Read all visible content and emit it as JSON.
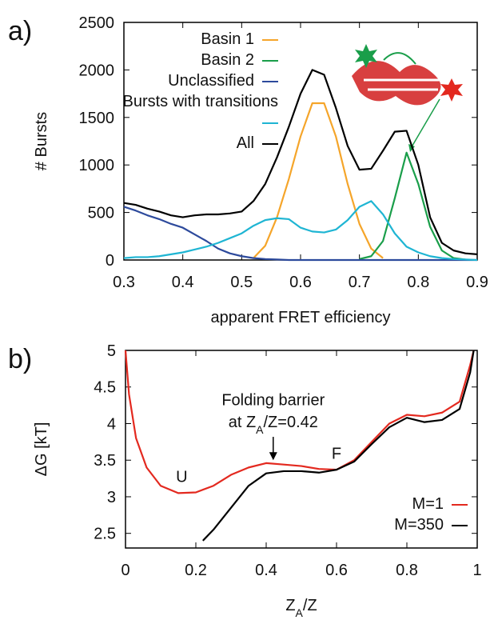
{
  "chart_data": [
    {
      "type": "line",
      "panel_label": "a)",
      "ylabel": "# Bursts",
      "xlabel": "apparent FRET efficiency",
      "xlim": [
        0.3,
        0.9
      ],
      "xticks": [
        0.3,
        0.4,
        0.5,
        0.6,
        0.7,
        0.8,
        0.9
      ],
      "ylim": [
        0,
        2500
      ],
      "yticks": [
        0,
        500,
        1000,
        1500,
        2000,
        2500
      ],
      "x": [
        0.3,
        0.32,
        0.34,
        0.36,
        0.38,
        0.4,
        0.42,
        0.44,
        0.46,
        0.48,
        0.5,
        0.52,
        0.54,
        0.56,
        0.58,
        0.6,
        0.62,
        0.64,
        0.66,
        0.68,
        0.7,
        0.72,
        0.74,
        0.76,
        0.78,
        0.8,
        0.82,
        0.84,
        0.86,
        0.88,
        0.9
      ],
      "series": [
        {
          "name": "Basin 1",
          "color": "#f5a52a",
          "values": [
            null,
            null,
            null,
            null,
            null,
            null,
            null,
            null,
            null,
            null,
            null,
            20,
            150,
            450,
            850,
            1300,
            1650,
            1650,
            1300,
            800,
            380,
            120,
            20,
            null,
            null,
            null,
            null,
            null,
            null,
            null,
            null
          ]
        },
        {
          "name": "Basin 2",
          "color": "#1a9e4a",
          "values": [
            null,
            null,
            null,
            null,
            null,
            null,
            null,
            null,
            null,
            null,
            null,
            null,
            null,
            null,
            null,
            null,
            null,
            null,
            null,
            null,
            10,
            40,
            200,
            650,
            1130,
            800,
            350,
            100,
            20,
            5,
            null
          ]
        },
        {
          "name": "Unclassified",
          "color": "#2d4a9c",
          "values": [
            560,
            520,
            470,
            430,
            380,
            340,
            270,
            200,
            120,
            70,
            40,
            20,
            10,
            5,
            0,
            0,
            0,
            0,
            0,
            0,
            0,
            0,
            0,
            0,
            0,
            0,
            0,
            0,
            0,
            0,
            0
          ]
        },
        {
          "name": "Bursts with transitions",
          "color": "#1fb5d3",
          "values": [
            20,
            30,
            30,
            40,
            60,
            80,
            110,
            140,
            180,
            230,
            280,
            360,
            420,
            440,
            430,
            340,
            300,
            290,
            320,
            420,
            560,
            620,
            480,
            280,
            140,
            80,
            40,
            20,
            10,
            5,
            0
          ]
        },
        {
          "name": "All",
          "color": "#000000",
          "values": [
            600,
            580,
            540,
            510,
            470,
            450,
            470,
            480,
            480,
            490,
            510,
            620,
            800,
            1080,
            1400,
            1750,
            2000,
            1950,
            1600,
            1200,
            950,
            960,
            1150,
            1350,
            1360,
            1000,
            450,
            180,
            100,
            70,
            60
          ]
        }
      ]
    },
    {
      "type": "line",
      "panel_label": "b)",
      "ylabel": "ΔG [kT]",
      "xlabel": [
        "Z",
        "A",
        "/Z"
      ],
      "xlim": [
        0,
        1
      ],
      "xticks": [
        0,
        0.2,
        0.4,
        0.6,
        0.8,
        1
      ],
      "ylim": [
        2.3,
        5
      ],
      "yticks": [
        2.5,
        3,
        3.5,
        4,
        4.5,
        5
      ],
      "annotations": [
        {
          "text": "U",
          "x": 0.16,
          "y": 3.2
        },
        {
          "text": "F",
          "x": 0.6,
          "y": 3.52
        },
        {
          "text": "Folding barrier",
          "x": 0.42,
          "y": 4.25
        },
        {
          "text": [
            "at Z",
            "A",
            "/Z=0.42"
          ],
          "x": 0.42,
          "y": 3.95,
          "arrow_to": 3.5
        }
      ],
      "series": [
        {
          "name": "M=1",
          "color": "#e3291f",
          "x": [
            0,
            0.01,
            0.03,
            0.06,
            0.1,
            0.15,
            0.2,
            0.25,
            0.3,
            0.35,
            0.4,
            0.45,
            0.5,
            0.55,
            0.6,
            0.65,
            0.7,
            0.75,
            0.8,
            0.85,
            0.9,
            0.95,
            0.98,
            0.99
          ],
          "values": [
            5.0,
            4.4,
            3.8,
            3.4,
            3.15,
            3.05,
            3.06,
            3.15,
            3.3,
            3.4,
            3.46,
            3.44,
            3.42,
            3.38,
            3.37,
            3.5,
            3.75,
            4.0,
            4.12,
            4.1,
            4.15,
            4.3,
            4.8,
            5.0
          ]
        },
        {
          "name": "M=350",
          "color": "#000000",
          "x": [
            0.22,
            0.25,
            0.3,
            0.35,
            0.4,
            0.45,
            0.5,
            0.55,
            0.6,
            0.65,
            0.7,
            0.75,
            0.8,
            0.85,
            0.9,
            0.95,
            0.98,
            0.99
          ],
          "values": [
            2.4,
            2.55,
            2.85,
            3.15,
            3.32,
            3.35,
            3.35,
            3.33,
            3.37,
            3.48,
            3.72,
            3.95,
            4.08,
            4.02,
            4.05,
            4.2,
            4.7,
            5.0
          ]
        }
      ]
    }
  ]
}
